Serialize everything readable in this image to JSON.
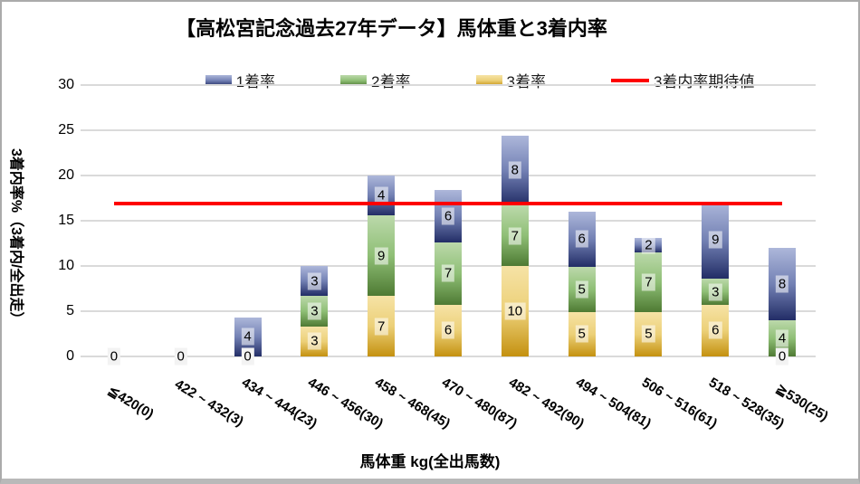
{
  "window": {
    "background": "#ffffff",
    "border_color": "#ababab",
    "bottom_bar_color": "#b9b9b9"
  },
  "chart_data": {
    "type": "bar",
    "subtype": "stacked-column-with-line-overlay",
    "title": "【高松宮記念過去27年データ】馬体重と3着内率",
    "xlabel": "馬体重 kg(全出馬数)",
    "ylabel": "3着内率%（3着内/全出走）",
    "ylim": [
      0,
      30
    ],
    "yticks": [
      0,
      5,
      10,
      15,
      20,
      25,
      30
    ],
    "grid": true,
    "legend_position": "top",
    "categories": [
      "≦420(0)",
      "422 ~ 432(3)",
      "434 ~ 444(23)",
      "446 ~ 456(30)",
      "458 ~ 468(45)",
      "470 ~ 480(87)",
      "482 ~ 492(90)",
      "494 ~ 504(81)",
      "506 ~ 516(61)",
      "518 ~ 528(35)",
      "≧530(25)"
    ],
    "series": [
      {
        "key": "third-place-rate",
        "name": "3着率",
        "color_top": "#f6e3a6",
        "color_mid": "#ecd078",
        "color_bottom": "#c49110",
        "pct": [
          0,
          0,
          0,
          3.33,
          6.67,
          5.75,
          10,
          4.94,
          4.92,
          5.71,
          0
        ],
        "labels": [
          "0",
          "0",
          "0",
          "3",
          "7",
          "6",
          "10",
          "5",
          "5",
          "6",
          "0"
        ]
      },
      {
        "key": "second-place-rate",
        "name": "2着率",
        "color_top": "#bcd9ab",
        "color_mid": "#8fbf76",
        "color_bottom": "#4e7a33",
        "pct": [
          0,
          0,
          0,
          3.33,
          8.89,
          6.9,
          6.67,
          4.94,
          6.56,
          2.86,
          4
        ],
        "labels": [
          "0",
          "0",
          "0",
          "3",
          "9",
          "7",
          "7",
          "5",
          "7",
          "3",
          "4"
        ]
      },
      {
        "key": "first-place-rate",
        "name": "1着率",
        "color_top": "#adb7da",
        "color_mid": "#7381b4",
        "color_bottom": "#222d66",
        "pct": [
          0,
          0,
          4.35,
          3.33,
          4.44,
          5.75,
          7.78,
          6.17,
          1.64,
          8.57,
          8
        ],
        "labels": [
          "0",
          "0",
          "4",
          "3",
          "4",
          "6",
          "8",
          "6",
          "2",
          "9",
          "8"
        ]
      }
    ],
    "line": {
      "key": "expected-top3-rate",
      "name": "3着内率期待値",
      "value": 16.875,
      "color": "#fe0000"
    },
    "legend": [
      {
        "key": "first-place-rate",
        "label": "1着率",
        "swatch": "series"
      },
      {
        "key": "second-place-rate",
        "label": "2着率",
        "swatch": "series"
      },
      {
        "key": "third-place-rate",
        "label": "3着率",
        "swatch": "series"
      },
      {
        "key": "expected-top3-rate",
        "label": "3着内率期待値",
        "swatch": "line"
      }
    ]
  }
}
